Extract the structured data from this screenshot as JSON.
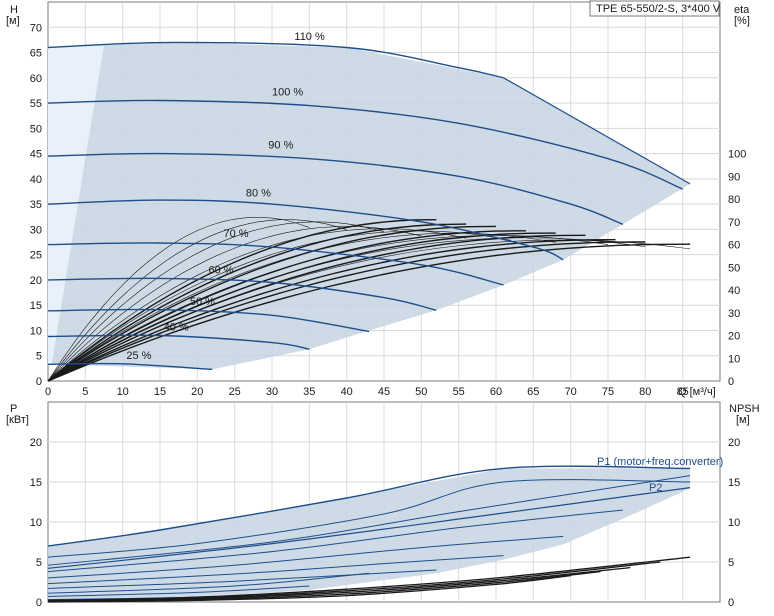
{
  "title": "TPE 65-550/2-S, 3*400 V",
  "chart_data": [
    {
      "type": "line",
      "name": "head-efficiency",
      "x_axis": {
        "label": "Q [m³/h]",
        "range": [
          0,
          90
        ],
        "ticks": [
          0,
          5,
          10,
          15,
          20,
          25,
          30,
          35,
          40,
          45,
          50,
          55,
          60,
          65,
          70,
          75,
          80,
          85
        ]
      },
      "y_axis_left": {
        "unit_label": "H",
        "unit": "[м]",
        "range": [
          0,
          75
        ],
        "ticks": [
          0,
          5,
          10,
          15,
          20,
          25,
          30,
          35,
          40,
          45,
          50,
          55,
          60,
          65,
          70
        ]
      },
      "y_axis_right": {
        "unit_label": "eta",
        "unit": "[%]",
        "range": [
          0,
          100
        ],
        "ticks": [
          0,
          10,
          20,
          30,
          40,
          50,
          60,
          70,
          80,
          90,
          100
        ]
      },
      "operating_area": [
        [
          0,
          66
        ],
        [
          17,
          67
        ],
        [
          40,
          66
        ],
        [
          61,
          60
        ],
        [
          86,
          39
        ],
        [
          77,
          31
        ],
        [
          69,
          24
        ],
        [
          61,
          19
        ],
        [
          52,
          14
        ],
        [
          43,
          10
        ],
        [
          35,
          6.3
        ],
        [
          22,
          2.3
        ],
        [
          0,
          3.3
        ]
      ],
      "head_series": [
        {
          "name": "110 %",
          "x": [
            0,
            17,
            40,
            55,
            61
          ],
          "y": [
            66,
            67,
            66,
            62,
            60
          ]
        },
        {
          "name": "100 %",
          "x": [
            0,
            15,
            35,
            55,
            75,
            85
          ],
          "y": [
            55,
            55.5,
            54.5,
            51,
            44,
            38
          ]
        },
        {
          "name": "90 %",
          "x": [
            0,
            15,
            35,
            55,
            70,
            77
          ],
          "y": [
            44.5,
            45,
            44,
            40.5,
            35,
            31
          ]
        },
        {
          "name": "80 %",
          "x": [
            0,
            15,
            30,
            50,
            65,
            69
          ],
          "y": [
            35,
            35.8,
            35,
            31.5,
            26.5,
            24
          ]
        },
        {
          "name": "70 %",
          "x": [
            0,
            15,
            30,
            50,
            61
          ],
          "y": [
            27,
            27.3,
            26.5,
            23,
            19
          ]
        },
        {
          "name": "60 %",
          "x": [
            0,
            15,
            30,
            45,
            52
          ],
          "y": [
            20,
            20.3,
            19.5,
            16.5,
            14
          ]
        },
        {
          "name": "50 %",
          "x": [
            0,
            15,
            30,
            43
          ],
          "y": [
            13.9,
            14.1,
            13,
            9.8
          ]
        },
        {
          "name": "40 %",
          "x": [
            0,
            15,
            30,
            35
          ],
          "y": [
            8.8,
            9,
            7.6,
            6.3
          ]
        },
        {
          "name": "25 %",
          "x": [
            0,
            10,
            22
          ],
          "y": [
            3.3,
            3.4,
            2.3
          ]
        }
      ],
      "efficiency_curves": [
        {
          "q_max": 52,
          "eta_max": 73
        },
        {
          "q_max": 56,
          "eta_max": 71
        },
        {
          "q_max": 60,
          "eta_max": 70
        },
        {
          "q_max": 64,
          "eta_max": 68
        },
        {
          "q_max": 68,
          "eta_max": 67
        },
        {
          "q_max": 72,
          "eta_max": 66
        },
        {
          "q_max": 76,
          "eta_max": 64
        },
        {
          "q_max": 80,
          "eta_max": 63
        },
        {
          "q_max": 86,
          "eta_max": 62
        }
      ],
      "efficiency_thin_curves": [
        {
          "q_max": 35,
          "eta_max": 72
        },
        {
          "q_max": 40,
          "eta_max": 71
        },
        {
          "q_max": 45,
          "eta_max": 70
        },
        {
          "q_max": 50,
          "eta_max": 68
        },
        {
          "q_max": 56,
          "eta_max": 67
        },
        {
          "q_max": 62,
          "eta_max": 66
        },
        {
          "q_max": 68,
          "eta_max": 65
        },
        {
          "q_max": 75,
          "eta_max": 64
        },
        {
          "q_max": 80,
          "eta_max": 63
        },
        {
          "q_max": 86,
          "eta_max": 62
        }
      ],
      "labels": {
        "x_label": "Q [м³/ч]"
      }
    },
    {
      "type": "line",
      "name": "power-npsh",
      "y_axis_left": {
        "unit_label": "P",
        "unit": "[кВт]",
        "range": [
          0,
          25
        ],
        "ticks": [
          0,
          5,
          10,
          15,
          20
        ]
      },
      "y_axis_right": {
        "unit_label": "NPSH",
        "unit": "[м]",
        "range": [
          0,
          25
        ],
        "ticks": [
          0,
          5,
          10,
          15,
          20
        ]
      },
      "power_area": [
        [
          0,
          7
        ],
        [
          15,
          9
        ],
        [
          40,
          13
        ],
        [
          61,
          16.7
        ],
        [
          86,
          16.7
        ],
        [
          86,
          14.2
        ],
        [
          77,
          10.4
        ],
        [
          69,
          7.2
        ],
        [
          61,
          5.3
        ],
        [
          52,
          3.6
        ],
        [
          43,
          2.5
        ],
        [
          35,
          1.5
        ],
        [
          22,
          0.6
        ],
        [
          0,
          0.1
        ]
      ],
      "p1_series": [
        {
          "name": "P1 (motor+freq.converter)",
          "x": [
            0,
            15,
            40,
            61,
            86
          ],
          "y": [
            7,
            9,
            13,
            16.7,
            16.7
          ]
        },
        {
          "x": [
            0,
            20,
            45,
            61,
            86
          ],
          "y": [
            5.6,
            7.3,
            11,
            15,
            15
          ]
        },
        {
          "x": [
            0,
            30,
            55,
            86
          ],
          "y": [
            4.6,
            7.5,
            11.3,
            15.8
          ]
        },
        {
          "x": [
            0,
            30,
            55,
            77
          ],
          "y": [
            3.8,
            6.3,
            9.3,
            11.5
          ]
        },
        {
          "x": [
            0,
            25,
            50,
            69
          ],
          "y": [
            3,
            4.6,
            6.8,
            8.2
          ]
        },
        {
          "x": [
            0,
            25,
            45,
            61
          ],
          "y": [
            2.3,
            3.5,
            4.8,
            5.8
          ]
        },
        {
          "x": [
            0,
            25,
            52
          ],
          "y": [
            1.7,
            2.6,
            4
          ]
        },
        {
          "x": [
            0,
            25,
            43
          ],
          "y": [
            1.1,
            2,
            3.6
          ]
        },
        {
          "x": [
            0,
            20,
            35
          ],
          "y": [
            0.7,
            1.2,
            2
          ]
        },
        {
          "x": [
            0,
            15,
            22
          ],
          "y": [
            0.3,
            0.5,
            0.7
          ]
        }
      ],
      "p2_label": "P2",
      "p2_series": {
        "name": "P2",
        "x": [
          0,
          30,
          60,
          86
        ],
        "y": [
          4.2,
          7.3,
          11,
          14.3
        ]
      },
      "npsh_series": [
        {
          "x": [
            0,
            20,
            40,
            60,
            86
          ],
          "y": [
            0.2,
            0.6,
            1.6,
            3,
            5.6
          ]
        },
        {
          "x": [
            0,
            20,
            40,
            60,
            82
          ],
          "y": [
            0.2,
            0.5,
            1.4,
            2.8,
            5
          ]
        },
        {
          "x": [
            0,
            20,
            40,
            60,
            78
          ],
          "y": [
            0.1,
            0.4,
            1.2,
            2.6,
            4.3
          ]
        },
        {
          "x": [
            0,
            20,
            40,
            60,
            74
          ],
          "y": [
            0.1,
            0.3,
            1,
            2.4,
            3.8
          ]
        },
        {
          "x": [
            0,
            20,
            40,
            60,
            70
          ],
          "y": [
            0,
            0.2,
            0.8,
            2.2,
            3.3
          ]
        }
      ]
    }
  ]
}
